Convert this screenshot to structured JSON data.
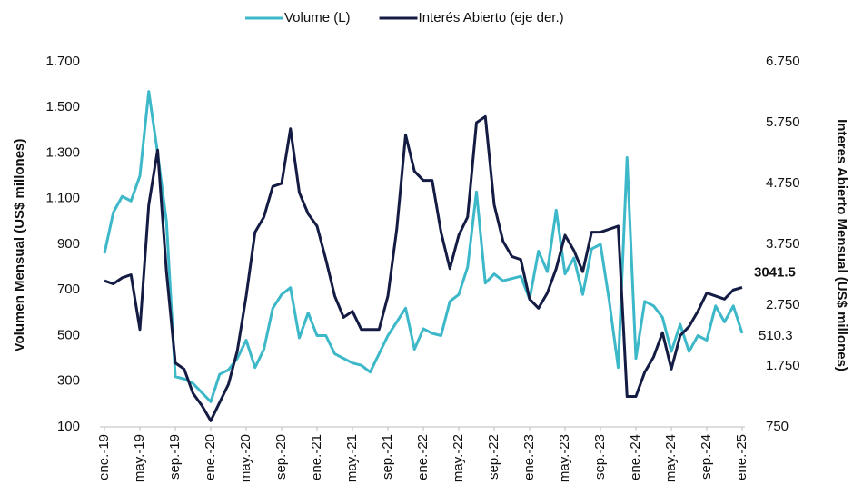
{
  "chart_data": {
    "type": "line",
    "y_label": "Volumen Mensual (US$ millones)",
    "y2_label": "Interes Abierto Mensual (US$ millones)",
    "categories": [
      "ene.-19",
      null,
      null,
      null,
      "may.-19",
      null,
      null,
      null,
      "sep.-19",
      null,
      null,
      null,
      "ene.-20",
      null,
      null,
      null,
      "may.-20",
      null,
      null,
      null,
      "sep.-20",
      null,
      null,
      null,
      "ene.-21",
      null,
      null,
      null,
      "may.-21",
      null,
      null,
      null,
      "sep.-21",
      null,
      null,
      null,
      "ene.-22",
      null,
      null,
      null,
      "may.-22",
      null,
      null,
      null,
      "sep.-22",
      null,
      null,
      null,
      "ene.-23",
      null,
      null,
      null,
      "may.-23",
      null,
      null,
      null,
      "sep.-23",
      null,
      null,
      null,
      "ene.-24",
      null,
      null,
      null,
      "may.-24",
      null,
      null,
      null,
      "sep.-24",
      null,
      null,
      null,
      "ene.-25"
    ],
    "series": [
      {
        "name": "Volume (L)",
        "color": "#3cb8c9",
        "values": [
          860,
          1040,
          1110,
          1090,
          1200,
          1570,
          1300,
          1000,
          320,
          310,
          290,
          250,
          210,
          330,
          350,
          400,
          480,
          360,
          440,
          620,
          680,
          710,
          490,
          600,
          500,
          500,
          420,
          400,
          380,
          370,
          340,
          420,
          500,
          560,
          620,
          440,
          530,
          510,
          500,
          650,
          680,
          800,
          1130,
          730,
          770,
          740,
          750,
          760,
          660,
          870,
          780,
          1050,
          770,
          840,
          680,
          880,
          900,
          650,
          360,
          1280,
          400,
          650,
          630,
          580,
          430,
          550,
          430,
          500,
          480,
          630,
          560,
          630,
          510.3
        ]
      },
      {
        "name": "Interés Abierto (eje der.)",
        "color": "#141c44",
        "axis": "y2",
        "values": [
          3150,
          3100,
          3200,
          3250,
          2350,
          4400,
          5300,
          3300,
          1800,
          1700,
          1300,
          1100,
          850,
          1150,
          1450,
          2000,
          2900,
          3950,
          4200,
          4700,
          4750,
          5650,
          4600,
          4250,
          4050,
          3500,
          2900,
          2550,
          2650,
          2350,
          2350,
          2350,
          2900,
          4000,
          5550,
          4950,
          4800,
          4800,
          3950,
          3350,
          3900,
          4200,
          5750,
          5850,
          4400,
          3800,
          3550,
          3500,
          2850,
          2700,
          2950,
          3350,
          3900,
          3650,
          3300,
          3950,
          3950,
          4000,
          4050,
          1250,
          1250,
          1650,
          1900,
          2300,
          1700,
          2250,
          2400,
          2650,
          2950,
          2900,
          2850,
          3000,
          3041.5
        ]
      }
    ],
    "ylim": [
      100,
      1700
    ],
    "yticks": [
      100,
      300,
      500,
      700,
      900,
      {
        "value": 1100,
        "label": "1.100"
      },
      {
        "value": 1300,
        "label": "1.300"
      },
      {
        "value": 1500,
        "label": "1.500"
      },
      {
        "value": 1700,
        "label": "1.700"
      }
    ],
    "y2lim": [
      750,
      6750
    ],
    "y2ticks": [
      750,
      {
        "value": 1750,
        "label": "1.750"
      },
      {
        "value": 2750,
        "label": "2.750"
      },
      {
        "value": 3750,
        "label": "3.750"
      },
      {
        "value": 4750,
        "label": "4.750"
      },
      {
        "value": 5750,
        "label": "5.750"
      },
      {
        "value": 6750,
        "label": "6.750"
      }
    ],
    "grid": false,
    "legend": "top"
  }
}
